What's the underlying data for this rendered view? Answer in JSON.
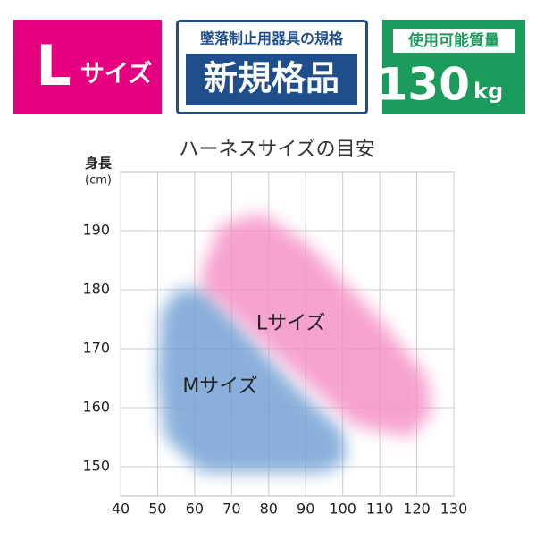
{
  "badges": {
    "size": {
      "letter": "L",
      "text": "サイズ"
    },
    "standard": {
      "caption": "墜落制止用器具の規格",
      "label": "新規格品"
    },
    "capacity": {
      "caption": "使用可能質量",
      "value": 130,
      "unit": "kg"
    }
  },
  "chart_data": {
    "type": "region",
    "title": "ハーネスサイズの目安",
    "y_label": "身長",
    "y_unit": "(cm)",
    "xlim": [
      40,
      130
    ],
    "xticks": [
      40,
      50,
      60,
      70,
      80,
      90,
      100,
      110,
      120,
      130
    ],
    "ylim": [
      145,
      200
    ],
    "yticks": [
      150,
      160,
      170,
      180,
      190
    ],
    "grid": true,
    "series": [
      {
        "name": "Mサイズ",
        "color": "#6c9cd2",
        "x": [
          51,
          55,
          63,
          72,
          88,
          100,
          101,
          95,
          62,
          52,
          50
        ],
        "values": [
          176,
          180,
          180,
          174,
          163,
          156,
          151,
          149,
          149,
          155,
          165
        ]
      },
      {
        "name": "Lサイズ",
        "color": "#f48cc2",
        "x": [
          62,
          67,
          78,
          90,
          110,
          123,
          124,
          118,
          103,
          85,
          68,
          62
        ],
        "values": [
          183,
          191,
          193,
          188,
          175,
          165,
          159,
          155,
          157,
          167,
          177,
          180
        ]
      }
    ]
  }
}
